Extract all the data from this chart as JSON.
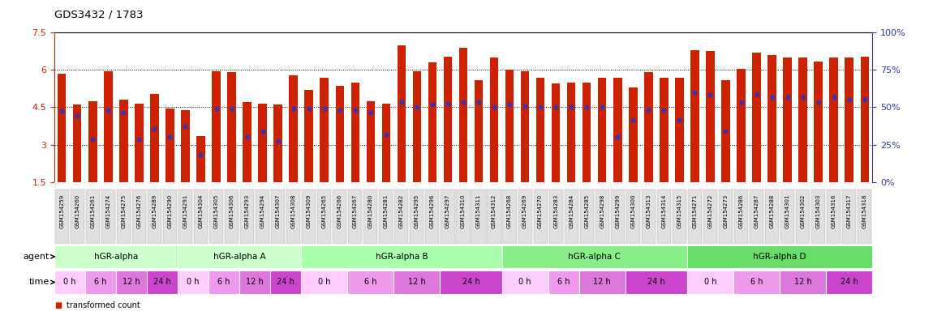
{
  "title": "GDS3432 / 1783",
  "samples": [
    "GSM154259",
    "GSM154260",
    "GSM154261",
    "GSM154274",
    "GSM154275",
    "GSM154276",
    "GSM154289",
    "GSM154290",
    "GSM154291",
    "GSM154304",
    "GSM154305",
    "GSM154306",
    "GSM154293",
    "GSM154294",
    "GSM154307",
    "GSM154308",
    "GSM154309",
    "GSM154265",
    "GSM154266",
    "GSM154267",
    "GSM154280",
    "GSM154281",
    "GSM154282",
    "GSM154295",
    "GSM154296",
    "GSM154297",
    "GSM154310",
    "GSM154311",
    "GSM154312",
    "GSM154268",
    "GSM154269",
    "GSM154270",
    "GSM154283",
    "GSM154284",
    "GSM154285",
    "GSM154298",
    "GSM154299",
    "GSM154300",
    "GSM154313",
    "GSM154314",
    "GSM154315",
    "GSM154271",
    "GSM154272",
    "GSM154273",
    "GSM154286",
    "GSM154287",
    "GSM154288",
    "GSM154301",
    "GSM154302",
    "GSM154303",
    "GSM154316",
    "GSM154317",
    "GSM154318"
  ],
  "bar_heights": [
    5.85,
    4.6,
    4.75,
    5.95,
    4.8,
    4.65,
    5.05,
    4.45,
    4.4,
    3.35,
    5.95,
    5.9,
    4.7,
    4.65,
    4.6,
    5.8,
    5.2,
    5.7,
    5.35,
    5.5,
    4.75,
    4.65,
    7.0,
    5.95,
    6.3,
    6.55,
    6.9,
    5.6,
    6.5,
    6.0,
    5.95,
    5.7,
    5.45,
    5.5,
    5.5,
    5.7,
    5.7,
    5.3,
    5.9,
    5.7,
    5.7,
    6.8,
    6.75,
    5.6,
    6.05,
    6.7,
    6.6,
    6.5,
    6.5,
    6.35,
    6.5,
    6.5,
    6.55
  ],
  "blue_dot_positions": [
    4.35,
    4.15,
    3.2,
    4.4,
    4.3,
    3.2,
    3.65,
    3.3,
    3.75,
    2.6,
    4.45,
    4.45,
    3.3,
    3.55,
    3.15,
    4.45,
    4.45,
    4.45,
    4.4,
    4.4,
    4.3,
    3.4,
    4.7,
    4.5,
    4.6,
    4.65,
    4.7,
    4.7,
    4.5,
    4.6,
    4.55,
    4.5,
    4.5,
    4.5,
    4.5,
    4.5,
    3.3,
    4.0,
    4.4,
    4.4,
    4.0,
    5.1,
    5.0,
    3.55,
    4.7,
    5.05,
    4.9,
    4.9,
    4.9,
    4.7,
    4.9,
    4.8,
    4.8
  ],
  "ymin": 1.5,
  "ymax": 7.5,
  "yticks": [
    1.5,
    3.0,
    4.5,
    6.0,
    7.5
  ],
  "ytick_labels": [
    "1.5",
    "3",
    "4.5",
    "6",
    "7.5"
  ],
  "y2ticks": [
    0,
    25,
    50,
    75,
    100
  ],
  "bar_color": "#cc2200",
  "dot_color": "#3333bb",
  "left_axis_color": "#cc2200",
  "right_axis_color": "#3333bb",
  "group_defs": [
    {
      "name": "hGR-alpha",
      "start": 0,
      "end": 7,
      "color": "#ccffcc"
    },
    {
      "name": "hGR-alpha A",
      "start": 8,
      "end": 15,
      "color": "#ccffcc"
    },
    {
      "name": "hGR-alpha B",
      "start": 16,
      "end": 28,
      "color": "#aaffaa"
    },
    {
      "name": "hGR-alpha C",
      "start": 29,
      "end": 40,
      "color": "#88ee88"
    },
    {
      "name": "hGR-alpha D",
      "start": 41,
      "end": 52,
      "color": "#66dd66"
    }
  ],
  "time_blocks": [
    {
      "label": "0 h",
      "start": 0,
      "end": 1,
      "color": "#ffccff"
    },
    {
      "label": "6 h",
      "start": 2,
      "end": 3,
      "color": "#ee99ee"
    },
    {
      "label": "12 h",
      "start": 4,
      "end": 5,
      "color": "#dd77dd"
    },
    {
      "label": "24 h",
      "start": 6,
      "end": 7,
      "color": "#cc44cc"
    },
    {
      "label": "0 h",
      "start": 8,
      "end": 9,
      "color": "#ffccff"
    },
    {
      "label": "6 h",
      "start": 10,
      "end": 11,
      "color": "#ee99ee"
    },
    {
      "label": "12 h",
      "start": 12,
      "end": 13,
      "color": "#dd77dd"
    },
    {
      "label": "24 h",
      "start": 14,
      "end": 15,
      "color": "#cc44cc"
    },
    {
      "label": "0 h",
      "start": 16,
      "end": 18,
      "color": "#ffccff"
    },
    {
      "label": "6 h",
      "start": 19,
      "end": 21,
      "color": "#ee99ee"
    },
    {
      "label": "12 h",
      "start": 22,
      "end": 24,
      "color": "#dd77dd"
    },
    {
      "label": "24 h",
      "start": 25,
      "end": 28,
      "color": "#cc44cc"
    },
    {
      "label": "0 h",
      "start": 29,
      "end": 31,
      "color": "#ffccff"
    },
    {
      "label": "6 h",
      "start": 32,
      "end": 33,
      "color": "#ee99ee"
    },
    {
      "label": "12 h",
      "start": 34,
      "end": 36,
      "color": "#dd77dd"
    },
    {
      "label": "24 h",
      "start": 37,
      "end": 40,
      "color": "#cc44cc"
    },
    {
      "label": "0 h",
      "start": 41,
      "end": 43,
      "color": "#ffccff"
    },
    {
      "label": "6 h",
      "start": 44,
      "end": 46,
      "color": "#ee99ee"
    },
    {
      "label": "12 h",
      "start": 47,
      "end": 49,
      "color": "#dd77dd"
    },
    {
      "label": "24 h",
      "start": 50,
      "end": 52,
      "color": "#cc44cc"
    }
  ]
}
